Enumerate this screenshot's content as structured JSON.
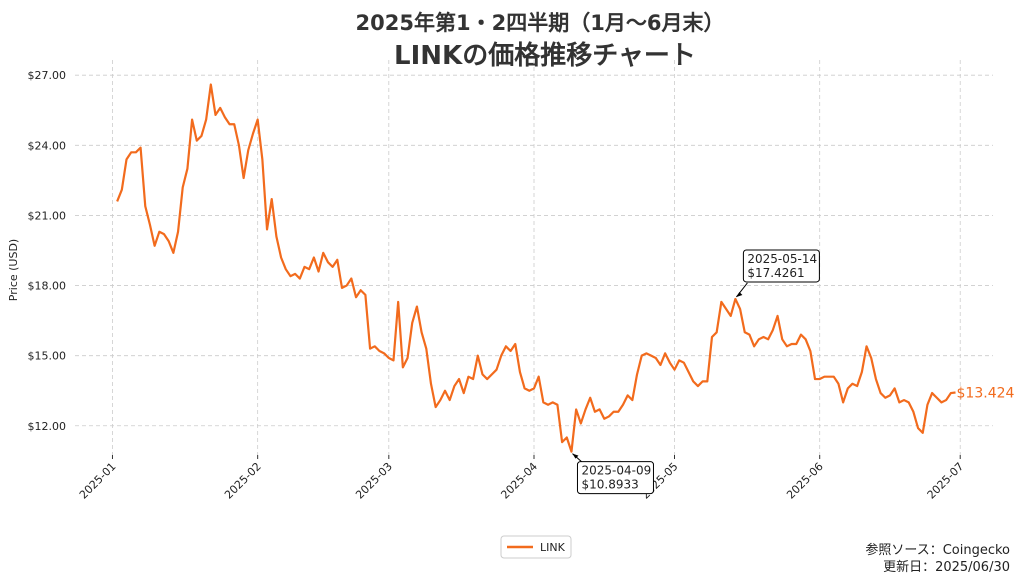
{
  "chart_data": {
    "type": "line",
    "title": "2025年第1・2四半期（1月〜6月末）",
    "subtitle": "LINKの価格推移チャート",
    "y_label": "Price (USD)",
    "xlim": [
      "2024-12-24",
      "2025-07-08"
    ],
    "xticks": [
      {
        "value": "2025-01-01",
        "label": "2025-01"
      },
      {
        "value": "2025-02-01",
        "label": "2025-02"
      },
      {
        "value": "2025-03-01",
        "label": "2025-03"
      },
      {
        "value": "2025-04-01",
        "label": "2025-04"
      },
      {
        "value": "2025-05-01",
        "label": "2025-05"
      },
      {
        "value": "2025-06-01",
        "label": "2025-06"
      },
      {
        "value": "2025-07-01",
        "label": "2025-07"
      }
    ],
    "ylim": [
      10.75,
      27.65
    ],
    "yticks": [
      {
        "value": 12,
        "label": "$12.00"
      },
      {
        "value": 15,
        "label": "$15.00"
      },
      {
        "value": 18,
        "label": "$18.00"
      },
      {
        "value": 21,
        "label": "$21.00"
      },
      {
        "value": 24,
        "label": "$24.00"
      },
      {
        "value": 27,
        "label": "$27.00"
      }
    ],
    "grid": true,
    "legend": "bottom",
    "x": [
      "2025-01-02",
      "2025-01-03",
      "2025-01-04",
      "2025-01-05",
      "2025-01-06",
      "2025-01-07",
      "2025-01-08",
      "2025-01-09",
      "2025-01-10",
      "2025-01-11",
      "2025-01-12",
      "2025-01-13",
      "2025-01-14",
      "2025-01-15",
      "2025-01-16",
      "2025-01-17",
      "2025-01-18",
      "2025-01-19",
      "2025-01-20",
      "2025-01-21",
      "2025-01-22",
      "2025-01-23",
      "2025-01-24",
      "2025-01-25",
      "2025-01-26",
      "2025-01-27",
      "2025-01-28",
      "2025-01-29",
      "2025-01-30",
      "2025-01-31",
      "2025-02-01",
      "2025-02-02",
      "2025-02-03",
      "2025-02-04",
      "2025-02-05",
      "2025-02-06",
      "2025-02-07",
      "2025-02-08",
      "2025-02-09",
      "2025-02-10",
      "2025-02-11",
      "2025-02-12",
      "2025-02-13",
      "2025-02-14",
      "2025-02-15",
      "2025-02-16",
      "2025-02-17",
      "2025-02-18",
      "2025-02-19",
      "2025-02-20",
      "2025-02-21",
      "2025-02-22",
      "2025-02-23",
      "2025-02-24",
      "2025-02-25",
      "2025-02-26",
      "2025-02-27",
      "2025-02-28",
      "2025-03-01",
      "2025-03-02",
      "2025-03-03",
      "2025-03-04",
      "2025-03-05",
      "2025-03-06",
      "2025-03-07",
      "2025-03-08",
      "2025-03-09",
      "2025-03-10",
      "2025-03-11",
      "2025-03-12",
      "2025-03-13",
      "2025-03-14",
      "2025-03-15",
      "2025-03-16",
      "2025-03-17",
      "2025-03-18",
      "2025-03-19",
      "2025-03-20",
      "2025-03-21",
      "2025-03-22",
      "2025-03-23",
      "2025-03-24",
      "2025-03-25",
      "2025-03-26",
      "2025-03-27",
      "2025-03-28",
      "2025-03-29",
      "2025-03-30",
      "2025-03-31",
      "2025-04-01",
      "2025-04-02",
      "2025-04-03",
      "2025-04-04",
      "2025-04-05",
      "2025-04-06",
      "2025-04-07",
      "2025-04-08",
      "2025-04-09",
      "2025-04-10",
      "2025-04-11",
      "2025-04-12",
      "2025-04-13",
      "2025-04-14",
      "2025-04-15",
      "2025-04-16",
      "2025-04-17",
      "2025-04-18",
      "2025-04-19",
      "2025-04-20",
      "2025-04-21",
      "2025-04-22",
      "2025-04-23",
      "2025-04-24",
      "2025-04-25",
      "2025-04-26",
      "2025-04-27",
      "2025-04-28",
      "2025-04-29",
      "2025-04-30",
      "2025-05-01",
      "2025-05-02",
      "2025-05-03",
      "2025-05-04",
      "2025-05-05",
      "2025-05-06",
      "2025-05-07",
      "2025-05-08",
      "2025-05-09",
      "2025-05-10",
      "2025-05-11",
      "2025-05-12",
      "2025-05-13",
      "2025-05-14",
      "2025-05-15",
      "2025-05-16",
      "2025-05-17",
      "2025-05-18",
      "2025-05-19",
      "2025-05-20",
      "2025-05-21",
      "2025-05-22",
      "2025-05-23",
      "2025-05-24",
      "2025-05-25",
      "2025-05-26",
      "2025-05-27",
      "2025-05-28",
      "2025-05-29",
      "2025-05-30",
      "2025-05-31",
      "2025-06-01",
      "2025-06-02",
      "2025-06-03",
      "2025-06-04",
      "2025-06-05",
      "2025-06-06",
      "2025-06-07",
      "2025-06-08",
      "2025-06-09",
      "2025-06-10",
      "2025-06-11",
      "2025-06-12",
      "2025-06-13",
      "2025-06-14",
      "2025-06-15",
      "2025-06-16",
      "2025-06-17",
      "2025-06-18",
      "2025-06-19",
      "2025-06-20",
      "2025-06-21",
      "2025-06-22",
      "2025-06-23",
      "2025-06-24",
      "2025-06-25",
      "2025-06-26",
      "2025-06-27",
      "2025-06-28",
      "2025-06-29",
      "2025-06-30"
    ],
    "series": [
      {
        "name": "LINK",
        "color": "#f26b1d",
        "values": [
          21.6,
          22.1,
          23.4,
          23.7,
          23.7,
          23.9,
          21.4,
          20.6,
          19.7,
          20.3,
          20.2,
          19.9,
          19.4,
          20.3,
          22.2,
          23.0,
          25.1,
          24.2,
          24.4,
          25.1,
          26.6,
          25.3,
          25.6,
          25.2,
          24.9,
          24.9,
          24.0,
          22.6,
          23.8,
          24.5,
          25.1,
          23.4,
          20.4,
          21.7,
          20.1,
          19.2,
          18.7,
          18.4,
          18.5,
          18.3,
          18.8,
          18.7,
          19.2,
          18.6,
          19.4,
          19.0,
          18.8,
          19.1,
          17.9,
          18.0,
          18.3,
          17.5,
          17.8,
          17.6,
          15.3,
          15.4,
          15.2,
          15.1,
          14.9,
          14.8,
          17.3,
          14.5,
          14.9,
          16.4,
          17.1,
          16.0,
          15.3,
          13.8,
          12.8,
          13.1,
          13.5,
          13.1,
          13.7,
          14.0,
          13.4,
          14.1,
          14.0,
          15.0,
          14.2,
          14.0,
          14.2,
          14.4,
          15.0,
          15.4,
          15.2,
          15.5,
          14.3,
          13.6,
          13.5,
          13.6,
          14.1,
          13.0,
          12.9,
          13.0,
          12.9,
          11.3,
          11.5,
          10.8933,
          12.7,
          12.1,
          12.7,
          13.2,
          12.6,
          12.7,
          12.3,
          12.4,
          12.6,
          12.6,
          12.9,
          13.3,
          13.1,
          14.2,
          15.0,
          15.1,
          15.0,
          14.9,
          14.6,
          15.1,
          14.7,
          14.4,
          14.8,
          14.7,
          14.3,
          13.9,
          13.7,
          13.9,
          13.9,
          15.8,
          16.0,
          17.3,
          17.0,
          16.7,
          17.4261,
          17.0,
          16.0,
          15.9,
          15.4,
          15.7,
          15.8,
          15.7,
          16.1,
          16.7,
          15.7,
          15.4,
          15.5,
          15.5,
          15.9,
          15.7,
          15.2,
          14.0,
          14.0,
          14.1,
          14.1,
          14.1,
          13.8,
          13.0,
          13.6,
          13.8,
          13.7,
          14.3,
          15.4,
          14.9,
          14.0,
          13.4,
          13.2,
          13.3,
          13.6,
          13.0,
          13.1,
          13.0,
          12.6,
          11.9,
          11.7,
          12.9,
          13.4,
          13.2,
          13.0,
          13.1,
          13.4,
          13.424
        ]
      }
    ],
    "annotations": [
      {
        "lines": [
          "2025-04-09",
          "$10.8933"
        ],
        "x": "2025-04-09",
        "y": 10.8933,
        "position": "below"
      },
      {
        "lines": [
          "2025-05-14",
          "$17.4261"
        ],
        "x": "2025-05-14",
        "y": 17.4261,
        "position": "above"
      }
    ],
    "end_label": {
      "text": "$13.424",
      "x": "2025-06-30",
      "y": 13.424
    },
    "source": [
      "参照ソース：Coingecko",
      "更新日：2025/06/30"
    ]
  }
}
